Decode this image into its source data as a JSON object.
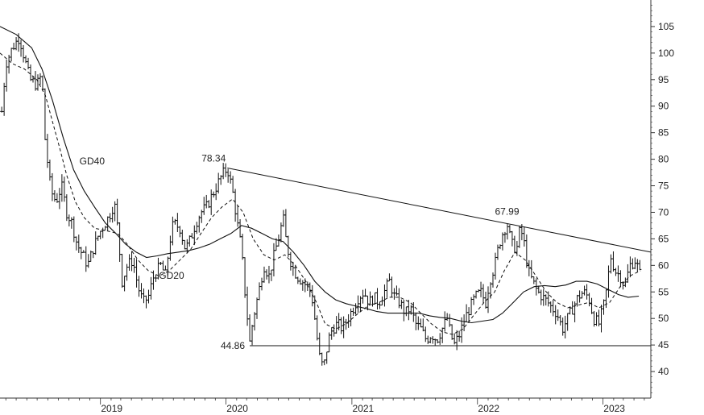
{
  "chart_data": {
    "type": "ohlc",
    "xlim": [
      "2018-03-15",
      "2023-05-20"
    ],
    "ylim": [
      35,
      110
    ],
    "y_ticks": [
      40,
      45,
      50,
      55,
      60,
      65,
      70,
      75,
      80,
      85,
      90,
      95,
      100,
      105
    ],
    "x_ticks": [
      {
        "label": "2019",
        "date": "2019-01-01"
      },
      {
        "label": "2020",
        "date": "2020-01-01"
      },
      {
        "label": "2021",
        "date": "2021-01-01"
      },
      {
        "label": "2022",
        "date": "2022-01-01"
      },
      {
        "label": "2023",
        "date": "2023-01-01"
      }
    ],
    "price_series": [
      [
        "2018-03-20",
        89
      ],
      [
        "2018-04-01",
        98
      ],
      [
        "2018-04-20",
        101
      ],
      [
        "2018-05-10",
        103
      ],
      [
        "2018-05-25",
        99
      ],
      [
        "2018-06-10",
        95
      ],
      [
        "2018-06-30",
        94
      ],
      [
        "2018-07-15",
        96
      ],
      [
        "2018-07-22",
        85
      ],
      [
        "2018-08-01",
        79
      ],
      [
        "2018-08-10",
        74
      ],
      [
        "2018-08-25",
        72
      ],
      [
        "2018-09-10",
        75
      ],
      [
        "2018-09-25",
        70
      ],
      [
        "2018-10-10",
        68
      ],
      [
        "2018-10-25",
        64
      ],
      [
        "2018-11-10",
        62
      ],
      [
        "2018-11-25",
        60
      ],
      [
        "2018-12-10",
        63
      ],
      [
        "2018-12-28",
        66
      ],
      [
        "2019-01-15",
        68
      ],
      [
        "2019-02-01",
        70
      ],
      [
        "2019-02-10",
        72
      ],
      [
        "2019-02-20",
        67
      ],
      [
        "2019-03-05",
        57
      ],
      [
        "2019-03-20",
        60
      ],
      [
        "2019-04-05",
        61
      ],
      [
        "2019-04-20",
        56
      ],
      [
        "2019-05-05",
        53
      ],
      [
        "2019-05-20",
        54
      ],
      [
        "2019-06-05",
        58
      ],
      [
        "2019-06-25",
        60
      ],
      [
        "2019-07-10",
        58
      ],
      [
        "2019-07-20",
        64
      ],
      [
        "2019-08-01",
        68
      ],
      [
        "2019-08-20",
        67
      ],
      [
        "2019-09-05",
        63
      ],
      [
        "2019-09-20",
        65
      ],
      [
        "2019-10-05",
        68
      ],
      [
        "2019-10-20",
        70
      ],
      [
        "2019-11-05",
        71
      ],
      [
        "2019-11-20",
        73
      ],
      [
        "2019-12-05",
        75
      ],
      [
        "2019-12-20",
        77
      ],
      [
        "2020-01-05",
        78.3
      ],
      [
        "2020-01-20",
        74
      ],
      [
        "2020-02-05",
        67
      ],
      [
        "2020-02-15",
        63
      ],
      [
        "2020-02-25",
        55
      ],
      [
        "2020-03-10",
        45.5
      ],
      [
        "2020-03-20",
        50
      ],
      [
        "2020-04-05",
        55
      ],
      [
        "2020-04-20",
        60
      ],
      [
        "2020-05-05",
        58
      ],
      [
        "2020-05-20",
        62
      ],
      [
        "2020-06-05",
        66
      ],
      [
        "2020-06-15",
        69
      ],
      [
        "2020-06-25",
        64
      ],
      [
        "2020-07-10",
        60
      ],
      [
        "2020-07-25",
        58
      ],
      [
        "2020-08-10",
        57
      ],
      [
        "2020-08-25",
        56
      ],
      [
        "2020-09-05",
        55
      ],
      [
        "2020-09-15",
        50
      ],
      [
        "2020-09-28",
        43
      ],
      [
        "2020-10-10",
        40.5
      ],
      [
        "2020-10-25",
        46
      ],
      [
        "2020-11-05",
        48
      ],
      [
        "2020-11-20",
        49
      ],
      [
        "2020-12-05",
        48
      ],
      [
        "2020-12-20",
        50
      ],
      [
        "2021-01-05",
        52
      ],
      [
        "2021-01-20",
        54
      ],
      [
        "2021-02-05",
        55
      ],
      [
        "2021-02-20",
        53
      ],
      [
        "2021-03-05",
        54
      ],
      [
        "2021-03-20",
        53
      ],
      [
        "2021-04-05",
        55
      ],
      [
        "2021-04-20",
        57
      ],
      [
        "2021-05-05",
        54
      ],
      [
        "2021-05-20",
        53
      ],
      [
        "2021-06-05",
        51
      ],
      [
        "2021-06-20",
        52
      ],
      [
        "2021-07-05",
        49
      ],
      [
        "2021-07-20",
        48
      ],
      [
        "2021-08-05",
        46
      ],
      [
        "2021-08-20",
        47
      ],
      [
        "2021-09-05",
        46
      ],
      [
        "2021-09-20",
        48
      ],
      [
        "2021-10-05",
        50
      ],
      [
        "2021-10-15",
        47
      ],
      [
        "2021-10-25",
        45
      ],
      [
        "2021-11-10",
        47
      ],
      [
        "2021-11-25",
        50
      ],
      [
        "2021-12-10",
        52
      ],
      [
        "2021-12-25",
        54
      ],
      [
        "2022-01-10",
        55
      ],
      [
        "2022-01-25",
        53
      ],
      [
        "2022-02-05",
        57
      ],
      [
        "2022-02-20",
        60
      ],
      [
        "2022-03-05",
        64
      ],
      [
        "2022-03-15",
        66
      ],
      [
        "2022-03-28",
        67.9
      ],
      [
        "2022-04-10",
        64
      ],
      [
        "2022-04-25",
        63
      ],
      [
        "2022-05-05",
        67
      ],
      [
        "2022-05-15",
        65
      ],
      [
        "2022-05-28",
        59
      ],
      [
        "2022-06-10",
        57
      ],
      [
        "2022-06-25",
        55
      ],
      [
        "2022-07-10",
        54
      ],
      [
        "2022-07-25",
        53
      ],
      [
        "2022-08-05",
        52
      ],
      [
        "2022-08-20",
        51
      ],
      [
        "2022-09-05",
        48
      ],
      [
        "2022-09-20",
        50
      ],
      [
        "2022-10-05",
        52
      ],
      [
        "2022-10-20",
        54
      ],
      [
        "2022-11-05",
        55
      ],
      [
        "2022-11-20",
        54
      ],
      [
        "2022-12-05",
        50
      ],
      [
        "2022-12-20",
        49
      ],
      [
        "2023-01-05",
        53
      ],
      [
        "2023-01-15",
        57
      ],
      [
        "2023-01-22",
        62
      ],
      [
        "2023-02-05",
        59
      ],
      [
        "2023-02-20",
        58
      ],
      [
        "2023-03-05",
        56
      ],
      [
        "2023-03-20",
        60
      ],
      [
        "2023-04-05",
        61
      ],
      [
        "2023-04-20",
        58
      ]
    ],
    "gd20": [
      [
        "2018-03-15",
        100
      ],
      [
        "2018-04-20",
        98
      ],
      [
        "2018-05-25",
        97
      ],
      [
        "2018-06-30",
        95
      ],
      [
        "2018-07-25",
        92
      ],
      [
        "2018-08-15",
        87
      ],
      [
        "2018-09-05",
        82
      ],
      [
        "2018-09-25",
        77
      ],
      [
        "2018-10-20",
        72
      ],
      [
        "2018-11-15",
        69
      ],
      [
        "2018-12-15",
        67
      ],
      [
        "2019-01-20",
        66.5
      ],
      [
        "2019-02-20",
        66
      ],
      [
        "2019-03-20",
        64
      ],
      [
        "2019-04-20",
        61
      ],
      [
        "2019-05-20",
        59
      ],
      [
        "2019-06-20",
        58
      ],
      [
        "2019-07-20",
        59
      ],
      [
        "2019-08-20",
        61
      ],
      [
        "2019-09-20",
        63
      ],
      [
        "2019-10-20",
        66
      ],
      [
        "2019-11-20",
        69
      ],
      [
        "2019-12-20",
        71
      ],
      [
        "2020-01-20",
        72.5
      ],
      [
        "2020-02-20",
        70
      ],
      [
        "2020-03-20",
        65
      ],
      [
        "2020-04-20",
        62
      ],
      [
        "2020-05-20",
        61
      ],
      [
        "2020-06-20",
        62
      ],
      [
        "2020-07-20",
        60
      ],
      [
        "2020-08-20",
        57
      ],
      [
        "2020-09-20",
        53
      ],
      [
        "2020-10-15",
        49
      ],
      [
        "2020-11-15",
        48
      ],
      [
        "2020-12-15",
        49
      ],
      [
        "2021-01-20",
        51
      ],
      [
        "2021-02-20",
        52.5
      ],
      [
        "2021-03-20",
        53
      ],
      [
        "2021-04-20",
        54
      ],
      [
        "2021-05-20",
        54
      ],
      [
        "2021-06-20",
        53
      ],
      [
        "2021-07-20",
        51
      ],
      [
        "2021-08-20",
        49
      ],
      [
        "2021-09-20",
        47.5
      ],
      [
        "2021-10-20",
        47
      ],
      [
        "2021-11-20",
        48
      ],
      [
        "2021-12-20",
        50.5
      ],
      [
        "2022-01-20",
        53
      ],
      [
        "2022-02-20",
        55
      ],
      [
        "2022-03-20",
        59
      ],
      [
        "2022-04-20",
        62.5
      ],
      [
        "2022-05-20",
        61
      ],
      [
        "2022-06-20",
        58
      ],
      [
        "2022-07-20",
        55
      ],
      [
        "2022-08-20",
        53
      ],
      [
        "2022-09-20",
        52
      ],
      [
        "2022-10-20",
        52.5
      ],
      [
        "2022-11-20",
        53
      ],
      [
        "2022-12-20",
        52
      ],
      [
        "2023-01-20",
        53
      ],
      [
        "2023-02-20",
        56
      ],
      [
        "2023-03-20",
        58
      ],
      [
        "2023-04-20",
        59
      ]
    ],
    "gd40": [
      [
        "2018-03-15",
        105
      ],
      [
        "2018-05-01",
        103.5
      ],
      [
        "2018-06-15",
        101
      ],
      [
        "2018-07-15",
        97
      ],
      [
        "2018-08-15",
        91
      ],
      [
        "2018-09-15",
        84
      ],
      [
        "2018-10-15",
        78
      ],
      [
        "2018-11-15",
        74
      ],
      [
        "2018-12-15",
        71
      ],
      [
        "2019-01-15",
        68
      ],
      [
        "2019-02-15",
        66
      ],
      [
        "2019-03-15",
        64
      ],
      [
        "2019-04-15",
        62.5
      ],
      [
        "2019-05-15",
        61.5
      ],
      [
        "2019-06-15",
        61.8
      ],
      [
        "2019-07-15",
        62.2
      ],
      [
        "2019-08-15",
        62.5
      ],
      [
        "2019-09-15",
        62.8
      ],
      [
        "2019-10-15",
        63.3
      ],
      [
        "2019-11-15",
        64
      ],
      [
        "2019-12-15",
        65
      ],
      [
        "2020-01-15",
        66
      ],
      [
        "2020-02-15",
        67.5
      ],
      [
        "2020-03-15",
        67
      ],
      [
        "2020-04-15",
        66
      ],
      [
        "2020-05-15",
        65
      ],
      [
        "2020-06-15",
        64.5
      ],
      [
        "2020-07-15",
        62.5
      ],
      [
        "2020-08-15",
        60
      ],
      [
        "2020-09-15",
        57
      ],
      [
        "2020-10-15",
        55
      ],
      [
        "2020-11-15",
        53.5
      ],
      [
        "2020-12-15",
        52.8
      ],
      [
        "2021-01-15",
        52.3
      ],
      [
        "2021-02-15",
        51.8
      ],
      [
        "2021-03-15",
        51.3
      ],
      [
        "2021-04-15",
        51
      ],
      [
        "2021-05-15",
        51
      ],
      [
        "2021-06-15",
        51
      ],
      [
        "2021-07-15",
        51
      ],
      [
        "2021-08-15",
        50.5
      ],
      [
        "2021-09-15",
        50.2
      ],
      [
        "2021-10-15",
        50
      ],
      [
        "2021-11-15",
        49.5
      ],
      [
        "2021-12-15",
        49.2
      ],
      [
        "2022-01-15",
        49.5
      ],
      [
        "2022-02-15",
        49.8
      ],
      [
        "2022-03-15",
        51
      ],
      [
        "2022-04-15",
        53
      ],
      [
        "2022-05-15",
        55
      ],
      [
        "2022-06-15",
        56
      ],
      [
        "2022-07-15",
        56.2
      ],
      [
        "2022-08-15",
        56
      ],
      [
        "2022-09-15",
        56.3
      ],
      [
        "2022-10-15",
        57
      ],
      [
        "2022-11-15",
        57
      ],
      [
        "2022-12-15",
        56.5
      ],
      [
        "2023-01-15",
        55.5
      ],
      [
        "2023-02-15",
        54.5
      ],
      [
        "2023-03-15",
        54
      ],
      [
        "2023-04-15",
        54.2
      ]
    ],
    "resistance_line": [
      [
        "2020-01-05",
        78.34
      ],
      [
        "2023-05-20",
        62.5
      ]
    ],
    "support_line": [
      [
        "2020-03-10",
        44.86
      ],
      [
        "2023-05-20",
        44.86
      ]
    ],
    "annotations": [
      {
        "text": "78.34",
        "date": "2020-01-05",
        "value": 78.34,
        "placement": "above-left"
      },
      {
        "text": "67.99",
        "date": "2022-03-28",
        "value": 67.99,
        "placement": "above"
      },
      {
        "text": "44.86",
        "date": "2020-03-10",
        "value": 44.86,
        "placement": "left"
      },
      {
        "text": "GD40",
        "date": "2018-11-01",
        "value": 79,
        "placement": "right"
      },
      {
        "text": "GD20",
        "date": "2019-06-20",
        "value": 57.5,
        "placement": "right"
      }
    ],
    "colors": {
      "price": "#111111",
      "lines": "#111111",
      "axis": "#333333",
      "text": "#222222"
    }
  }
}
